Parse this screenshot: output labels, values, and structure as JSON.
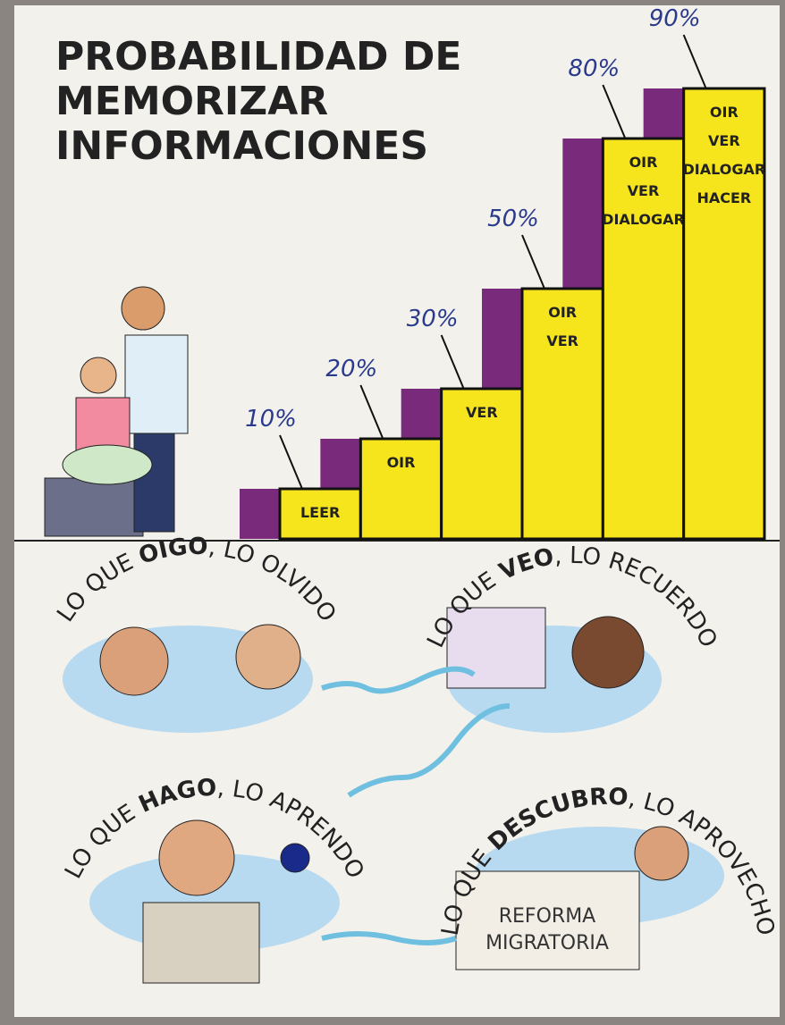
{
  "chart_data": {
    "type": "bar",
    "title": [
      "PROBABILIDAD DE",
      "MEMORIZAR",
      "INFORMACIONES"
    ],
    "categories": [
      [
        "LEER"
      ],
      [
        "OIR"
      ],
      [
        "VER"
      ],
      [
        "OIR",
        "VER"
      ],
      [
        "OIR",
        "VER",
        "DIALOGAR"
      ],
      [
        "OIR",
        "VER",
        "DIALOGAR",
        "HACER"
      ]
    ],
    "values": [
      10,
      20,
      30,
      50,
      80,
      90
    ],
    "value_labels": [
      "10%",
      "20%",
      "30%",
      "50%",
      "80%",
      "90%"
    ],
    "color": "#f6e51c",
    "riser_color": "#7a2a7a",
    "label_color": "#2a3a8c"
  },
  "panels": [
    {
      "pre": "LO QUE ",
      "key": "OIGO",
      "post": ", LO OLVIDO"
    },
    {
      "pre": "LO QUE ",
      "key": "VEO",
      "post": ", LO RECUERDO"
    },
    {
      "pre": "LO QUE ",
      "key": "HAGO",
      "post": ", LO APRENDO"
    },
    {
      "pre": "LO QUE ",
      "key": "DESCUBRO",
      "post": ", LO APROVECHO"
    }
  ],
  "sign": [
    "REFORMA",
    "MIGRATORIA"
  ]
}
